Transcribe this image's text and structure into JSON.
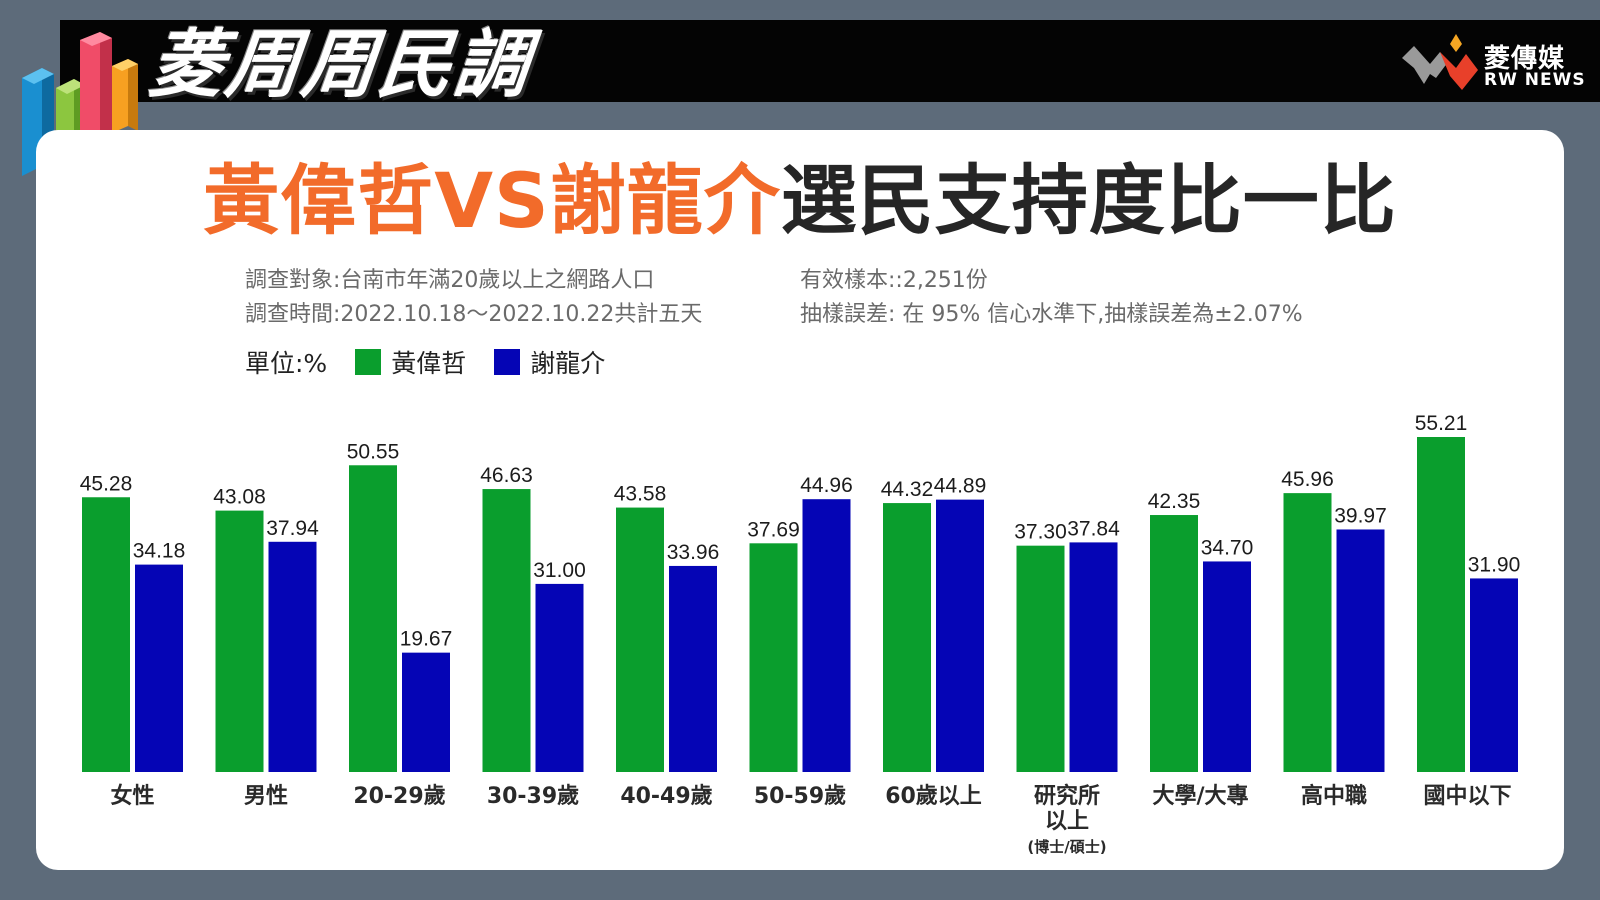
{
  "brand": {
    "program_title": "菱周周民調",
    "logo_name": "菱傳媒",
    "logo_sub": "RW NEWS"
  },
  "headline": {
    "part1": "黃偉哲VS謝龍介",
    "part2": "選民支持度比一比"
  },
  "survey": {
    "target": "調查對象:台南市年滿20歲以上之網路人口",
    "period": "調查時間:2022.10.18～2022.10.22共計五天",
    "sample": "有效樣本::2,251份",
    "error": "抽樣誤差: 在 95% 信心水準下,抽樣誤差為±2.07%"
  },
  "legend": {
    "unit": "單位:%"
  },
  "colors": {
    "green": "#0a9e2d",
    "blue": "#0505b5",
    "orange": "#f26b2a"
  },
  "chart_data": {
    "type": "bar",
    "categories": [
      "女性",
      "男性",
      "20-29歲",
      "30-39歲",
      "40-49歲",
      "50-59歲",
      "60歲以上",
      "研究所以上",
      "大學/大專",
      "高中職",
      "國中以下"
    ],
    "category_notes": [
      "",
      "",
      "",
      "",
      "",
      "",
      "",
      "(博士/碩士)",
      "",
      "",
      ""
    ],
    "series": [
      {
        "name": "黃偉哲",
        "values": [
          45.28,
          43.08,
          50.55,
          46.63,
          43.58,
          37.69,
          44.32,
          37.3,
          42.35,
          45.96,
          55.21
        ],
        "labels": [
          "45.28",
          "43.08",
          "50.55",
          "46.63",
          "43.58",
          "37.69",
          "44.32",
          "37.30",
          "42.35",
          "45.96",
          "55.21"
        ]
      },
      {
        "name": "謝龍介",
        "values": [
          34.18,
          37.94,
          19.67,
          31.0,
          33.96,
          44.96,
          44.89,
          37.84,
          34.7,
          39.97,
          31.9
        ],
        "labels": [
          "34.18",
          "37.94",
          "19.67",
          "31.00",
          "33.96",
          "44.96",
          "44.89",
          "37.84",
          "34.70",
          "39.97",
          "31.90"
        ]
      }
    ],
    "unit": "%",
    "ylim": [
      0,
      55.21
    ],
    "grid": false,
    "legend_position": "top-left"
  }
}
